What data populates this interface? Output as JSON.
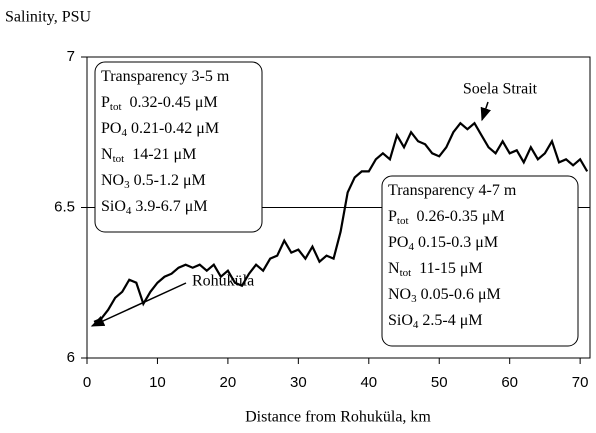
{
  "chart_data": {
    "type": "line",
    "y_axis_label": "Salinity, PSU",
    "x_axis_label": "Distance from Rohuküla, km",
    "x": [
      1,
      2,
      3,
      4,
      5,
      6,
      7,
      8,
      9,
      10,
      11,
      12,
      13,
      14,
      15,
      16,
      17,
      18,
      19,
      20,
      21,
      22,
      23,
      24,
      25,
      26,
      27,
      28,
      29,
      30,
      31,
      32,
      33,
      34,
      35,
      36,
      37,
      38,
      39,
      40,
      41,
      42,
      43,
      44,
      45,
      46,
      47,
      48,
      49,
      50,
      51,
      52,
      53,
      54,
      55,
      56,
      57,
      58,
      59,
      60,
      61,
      62,
      63,
      64,
      65,
      66,
      67,
      68,
      69,
      70,
      71
    ],
    "series": [
      {
        "color": "#000000",
        "values": [
          6.12,
          6.13,
          6.16,
          6.2,
          6.22,
          6.26,
          6.25,
          6.18,
          6.22,
          6.25,
          6.27,
          6.28,
          6.3,
          6.31,
          6.3,
          6.31,
          6.29,
          6.31,
          6.27,
          6.29,
          6.25,
          6.24,
          6.28,
          6.31,
          6.29,
          6.33,
          6.34,
          6.39,
          6.35,
          6.36,
          6.33,
          6.37,
          6.32,
          6.34,
          6.33,
          6.42,
          6.55,
          6.6,
          6.62,
          6.62,
          6.66,
          6.68,
          6.66,
          6.74,
          6.7,
          6.75,
          6.72,
          6.71,
          6.68,
          6.67,
          6.7,
          6.75,
          6.78,
          6.76,
          6.78,
          6.74,
          6.7,
          6.68,
          6.72,
          6.68,
          6.69,
          6.65,
          6.7,
          6.66,
          6.68,
          6.72,
          6.65,
          6.66,
          6.64,
          6.66,
          6.62
        ]
      }
    ],
    "xlim": [
      0,
      71.4
    ],
    "xticks": [
      0,
      10,
      20,
      30,
      40,
      50,
      60,
      70
    ],
    "ylim": [
      6,
      7
    ],
    "yticks": [
      6,
      6.5,
      7
    ],
    "grid": true,
    "annotations": [
      {
        "text": "Soela Strait"
      },
      {
        "text": "Rohuküla"
      }
    ],
    "boxes": [
      {
        "lines": [
          {
            "text": "Transparency 3-5 m"
          },
          {
            "base": "P",
            "sub": "tot",
            "text": "  0.32-0.45 μM"
          },
          {
            "base": "PO",
            "sub": "4",
            "text": " 0.21-0.42 μM"
          },
          {
            "base": "N",
            "sub": "tot",
            "text": "  14-21 μM"
          },
          {
            "base": "NO",
            "sub": "3",
            "text": " 0.5-1.2 μM"
          },
          {
            "base": "SiO",
            "sub": "4",
            "text": " 3.9-6.7 μM"
          }
        ]
      },
      {
        "lines": [
          {
            "text": "Transparency 4-7 m"
          },
          {
            "base": "P",
            "sub": "tot",
            "text": "  0.26-0.35 μM"
          },
          {
            "base": "PO",
            "sub": "4",
            "text": " 0.15-0.3 μM"
          },
          {
            "base": "N",
            "sub": "tot",
            "text": "  11-15 μM"
          },
          {
            "base": "NO",
            "sub": "3",
            "text": " 0.05-0.6 μM"
          },
          {
            "base": "SiO",
            "sub": "4",
            "text": " 2.5-4 μM"
          }
        ]
      }
    ]
  }
}
